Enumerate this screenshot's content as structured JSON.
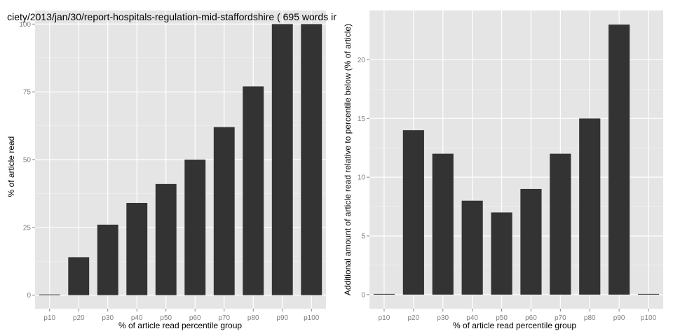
{
  "chart_data": [
    {
      "type": "bar",
      "title": "ciety/2013/jan/30/report-hospitals-regulation-mid-staffordshire ( 695 words ir",
      "xlabel": "% of article read percentile group",
      "ylabel": "% of article read",
      "categories": [
        "p10",
        "p20",
        "p30",
        "p40",
        "p50",
        "p60",
        "p70",
        "p80",
        "p90",
        "p100"
      ],
      "values": [
        0,
        14,
        26,
        34,
        41,
        50,
        62,
        77,
        100,
        100
      ],
      "ylim": [
        -5,
        105
      ],
      "yticks": [
        0,
        25,
        50,
        75,
        100
      ],
      "grid": true,
      "colors": {
        "bar": "#333333",
        "panel": "#e5e5e5"
      }
    },
    {
      "type": "bar",
      "title": "",
      "xlabel": "% of article read percentile group",
      "ylabel": "Additional amount of article read relative to percentile below (% of article)",
      "categories": [
        "p10",
        "p20",
        "p30",
        "p40",
        "p50",
        "p60",
        "p70",
        "p80",
        "p90",
        "p100"
      ],
      "values": [
        0,
        14,
        12,
        8,
        7,
        9,
        12,
        15,
        23,
        0
      ],
      "ylim": [
        -1.2,
        24.2
      ],
      "yticks": [
        0,
        5,
        10,
        15,
        20
      ],
      "grid": true,
      "colors": {
        "bar": "#333333",
        "panel": "#e5e5e5"
      }
    }
  ]
}
